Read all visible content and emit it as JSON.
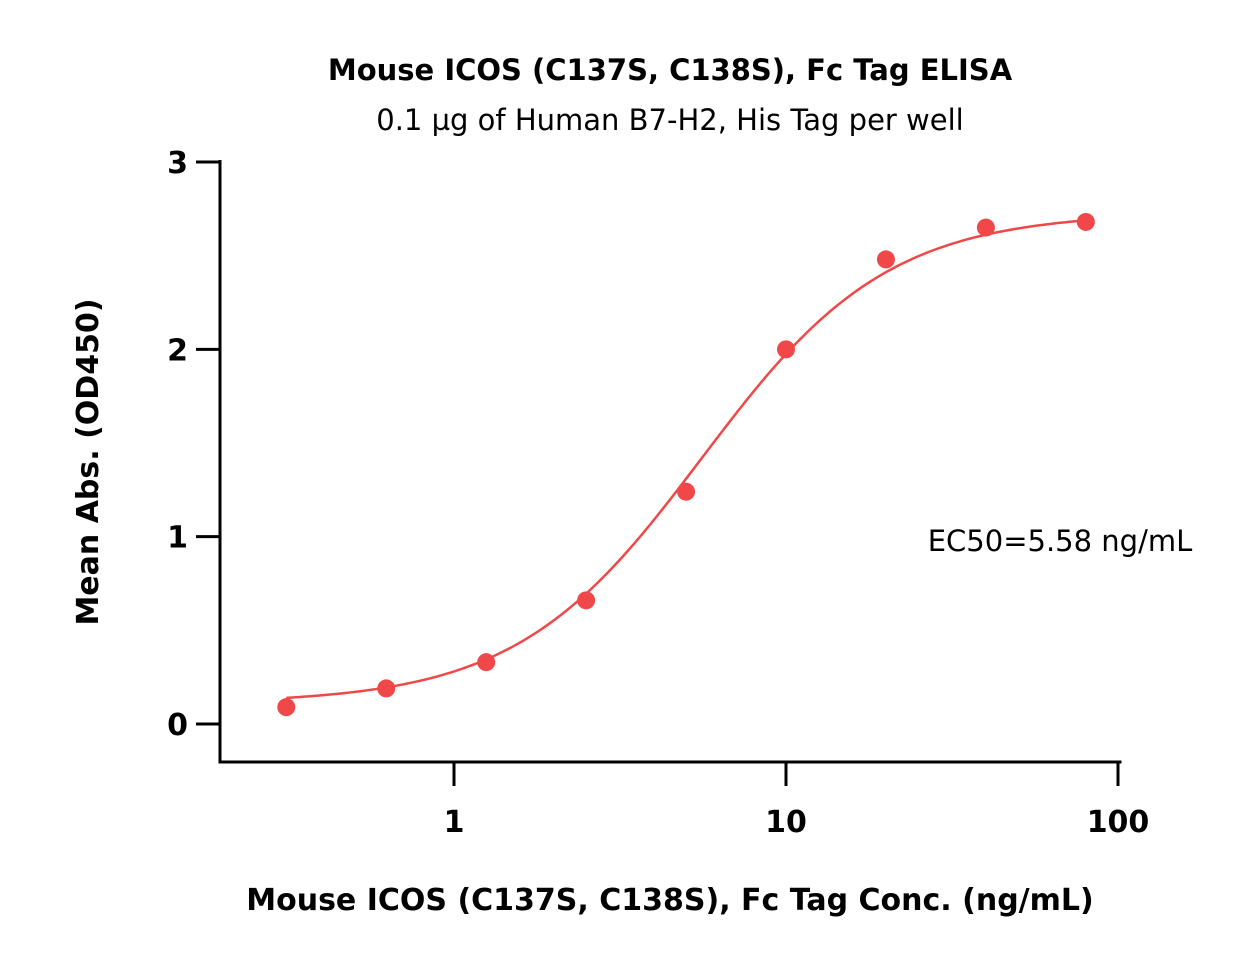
{
  "chart_data": {
    "type": "scatter",
    "title": "Mouse ICOS (C137S, C138S), Fc Tag ELISA",
    "subtitle": "0.1 µg of Human B7-H2, His Tag per well",
    "xlabel": "Mouse ICOS (C137S, C138S), Fc Tag Conc. (ng/mL)",
    "ylabel": "Mean Abs. (OD450)",
    "x_scale": "log",
    "xlim": [
      0.2,
      100
    ],
    "ylim": [
      -0.2,
      3
    ],
    "x_ticks": [
      {
        "value": 1,
        "label": "1"
      },
      {
        "value": 10,
        "label": "10"
      },
      {
        "value": 100,
        "label": "100"
      }
    ],
    "y_ticks": [
      {
        "value": 0,
        "label": "0"
      },
      {
        "value": 1,
        "label": "1"
      },
      {
        "value": 2,
        "label": "2"
      },
      {
        "value": 3,
        "label": "3"
      }
    ],
    "grid": false,
    "series": [
      {
        "color": "#f04848",
        "points": [
          {
            "x": 0.3125,
            "y": 0.09
          },
          {
            "x": 0.625,
            "y": 0.19
          },
          {
            "x": 1.25,
            "y": 0.33
          },
          {
            "x": 2.5,
            "y": 0.66
          },
          {
            "x": 5,
            "y": 1.24
          },
          {
            "x": 10,
            "y": 2.0
          },
          {
            "x": 20,
            "y": 2.48
          },
          {
            "x": 40,
            "y": 2.65
          },
          {
            "x": 80,
            "y": 2.68
          }
        ],
        "fit": {
          "type": "four-parameter-logistic",
          "bottom": 0.11,
          "top": 2.73,
          "ec50": 5.58,
          "hill": 1.55
        }
      }
    ],
    "annotations": [
      {
        "text": "EC50=5.58 ng/mL"
      }
    ]
  }
}
